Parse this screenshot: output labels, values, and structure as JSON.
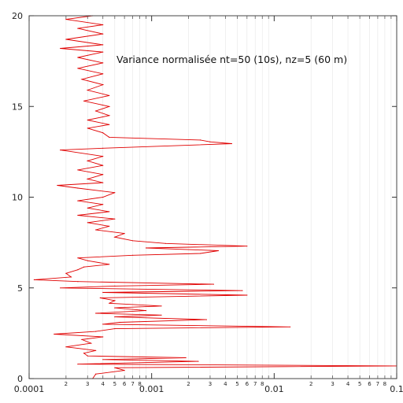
{
  "chart_data": {
    "type": "line",
    "x_scale": "log",
    "xlim": [
      0.0001,
      0.1
    ],
    "ylim": [
      0,
      20
    ],
    "grid": false,
    "annotation": "Variance normalisée nt=50 (10s), nz=5 (60 m)",
    "x_major_ticks": [
      0.0001,
      0.001,
      0.01,
      0.1
    ],
    "x_major_tick_labels": [
      "0.0001",
      "0.001",
      "0.01",
      "0.1"
    ],
    "x_minor_ticks": [
      2,
      3,
      4,
      5,
      6,
      7,
      8
    ],
    "y_ticks": [
      0,
      5,
      10,
      15,
      20
    ],
    "y_tick_labels": [
      "0",
      "5",
      "10",
      "15",
      "20"
    ],
    "series": [
      {
        "color": "#e00000",
        "points": [
          [
            0.00033,
            0.0
          ],
          [
            0.00035,
            0.25
          ],
          [
            0.0006,
            0.45
          ],
          [
            0.0005,
            0.6
          ],
          [
            0.1,
            0.7
          ],
          [
            0.00025,
            0.8
          ],
          [
            0.0024,
            0.95
          ],
          [
            0.0004,
            1.05
          ],
          [
            0.0019,
            1.15
          ],
          [
            0.0003,
            1.25
          ],
          [
            0.00028,
            1.4
          ],
          [
            0.00035,
            1.55
          ],
          [
            0.0002,
            1.75
          ],
          [
            0.00032,
            1.95
          ],
          [
            0.00027,
            2.15
          ],
          [
            0.0004,
            2.3
          ],
          [
            0.00016,
            2.45
          ],
          [
            0.00035,
            2.6
          ],
          [
            0.0005,
            2.75
          ],
          [
            0.0135,
            2.85
          ],
          [
            0.0004,
            3.0
          ],
          [
            0.00055,
            3.1
          ],
          [
            0.0028,
            3.25
          ],
          [
            0.0005,
            3.4
          ],
          [
            0.0012,
            3.5
          ],
          [
            0.00035,
            3.6
          ],
          [
            0.0009,
            3.75
          ],
          [
            0.0005,
            3.9
          ],
          [
            0.0012,
            4.0
          ],
          [
            0.00045,
            4.15
          ],
          [
            0.0005,
            4.3
          ],
          [
            0.00038,
            4.45
          ],
          [
            0.006,
            4.6
          ],
          [
            0.0004,
            4.75
          ],
          [
            0.0055,
            4.85
          ],
          [
            0.00018,
            5.0
          ],
          [
            0.0005,
            5.1
          ],
          [
            0.0032,
            5.2
          ],
          [
            0.00025,
            5.35
          ],
          [
            0.00011,
            5.45
          ],
          [
            0.00022,
            5.6
          ],
          [
            0.0002,
            5.8
          ],
          [
            0.00025,
            6.0
          ],
          [
            0.00028,
            6.15
          ],
          [
            0.00045,
            6.3
          ],
          [
            0.0003,
            6.5
          ],
          [
            0.00025,
            6.65
          ],
          [
            0.0007,
            6.8
          ],
          [
            0.0025,
            6.9
          ],
          [
            0.0035,
            7.05
          ],
          [
            0.0009,
            7.2
          ],
          [
            0.006,
            7.3
          ],
          [
            0.0013,
            7.45
          ],
          [
            0.0007,
            7.6
          ],
          [
            0.0005,
            7.8
          ],
          [
            0.0006,
            8.0
          ],
          [
            0.00035,
            8.2
          ],
          [
            0.00045,
            8.4
          ],
          [
            0.0003,
            8.6
          ],
          [
            0.0005,
            8.8
          ],
          [
            0.00025,
            9.0
          ],
          [
            0.00045,
            9.2
          ],
          [
            0.0003,
            9.4
          ],
          [
            0.0004,
            9.6
          ],
          [
            0.00025,
            9.8
          ],
          [
            0.0004,
            10.0
          ],
          [
            0.0005,
            10.25
          ],
          [
            0.00025,
            10.5
          ],
          [
            0.00017,
            10.65
          ],
          [
            0.0004,
            10.8
          ],
          [
            0.0003,
            11.0
          ],
          [
            0.0004,
            11.25
          ],
          [
            0.00025,
            11.5
          ],
          [
            0.0004,
            11.75
          ],
          [
            0.0003,
            12.0
          ],
          [
            0.0004,
            12.25
          ],
          [
            0.00018,
            12.6
          ],
          [
            0.0004,
            12.7
          ],
          [
            0.0045,
            12.95
          ],
          [
            0.003,
            13.05
          ],
          [
            0.0025,
            13.15
          ],
          [
            0.00045,
            13.3
          ],
          [
            0.0004,
            13.55
          ],
          [
            0.0003,
            13.8
          ],
          [
            0.00045,
            14.0
          ],
          [
            0.0003,
            14.25
          ],
          [
            0.00045,
            14.5
          ],
          [
            0.00035,
            14.75
          ],
          [
            0.00045,
            15.0
          ],
          [
            0.00028,
            15.3
          ],
          [
            0.00045,
            15.6
          ],
          [
            0.0003,
            15.9
          ],
          [
            0.0004,
            16.2
          ],
          [
            0.00027,
            16.5
          ],
          [
            0.0004,
            16.8
          ],
          [
            0.00025,
            17.1
          ],
          [
            0.0004,
            17.4
          ],
          [
            0.00025,
            17.7
          ],
          [
            0.0004,
            18.0
          ],
          [
            0.00018,
            18.2
          ],
          [
            0.0004,
            18.4
          ],
          [
            0.0002,
            18.7
          ],
          [
            0.0004,
            19.0
          ],
          [
            0.00025,
            19.3
          ],
          [
            0.0004,
            19.5
          ],
          [
            0.0002,
            19.8
          ],
          [
            0.00033,
            20.0
          ]
        ]
      }
    ]
  }
}
